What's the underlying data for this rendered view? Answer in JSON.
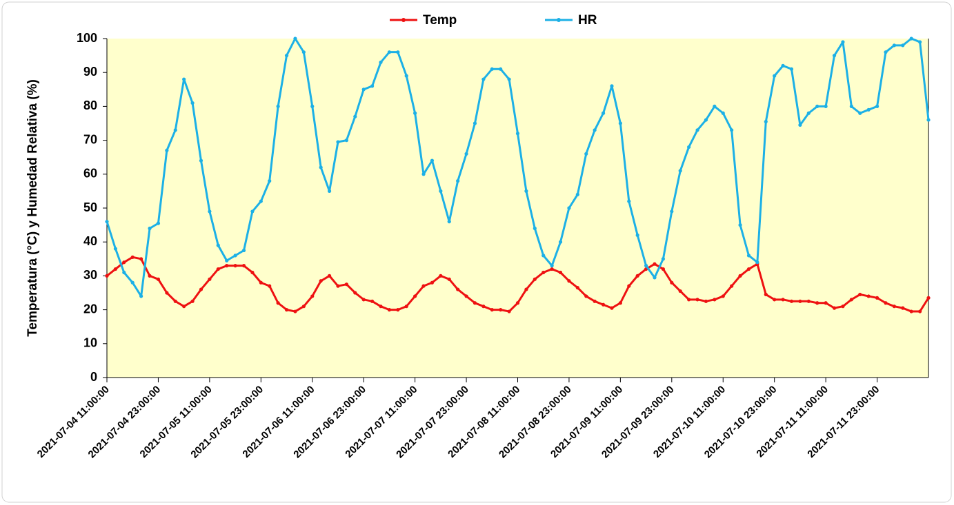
{
  "chart_data": {
    "type": "line",
    "y_label": "Temperatura (°C) y Humedad Relativa (%)",
    "x": [
      "2021-07-04 11:00:00",
      "2021-07-04 13:00:00",
      "2021-07-04 15:00:00",
      "2021-07-04 17:00:00",
      "2021-07-04 19:00:00",
      "2021-07-04 21:00:00",
      "2021-07-04 23:00:00",
      "2021-07-05 01:00:00",
      "2021-07-05 03:00:00",
      "2021-07-05 05:00:00",
      "2021-07-05 07:00:00",
      "2021-07-05 09:00:00",
      "2021-07-05 11:00:00",
      "2021-07-05 13:00:00",
      "2021-07-05 15:00:00",
      "2021-07-05 17:00:00",
      "2021-07-05 19:00:00",
      "2021-07-05 21:00:00",
      "2021-07-05 23:00:00",
      "2021-07-06 01:00:00",
      "2021-07-06 03:00:00",
      "2021-07-06 05:00:00",
      "2021-07-06 07:00:00",
      "2021-07-06 09:00:00",
      "2021-07-06 11:00:00",
      "2021-07-06 13:00:00",
      "2021-07-06 15:00:00",
      "2021-07-06 17:00:00",
      "2021-07-06 19:00:00",
      "2021-07-06 21:00:00",
      "2021-07-06 23:00:00",
      "2021-07-07 01:00:00",
      "2021-07-07 03:00:00",
      "2021-07-07 05:00:00",
      "2021-07-07 07:00:00",
      "2021-07-07 09:00:00",
      "2021-07-07 11:00:00",
      "2021-07-07 13:00:00",
      "2021-07-07 15:00:00",
      "2021-07-07 17:00:00",
      "2021-07-07 19:00:00",
      "2021-07-07 21:00:00",
      "2021-07-07 23:00:00",
      "2021-07-08 01:00:00",
      "2021-07-08 03:00:00",
      "2021-07-08 05:00:00",
      "2021-07-08 07:00:00",
      "2021-07-08 09:00:00",
      "2021-07-08 11:00:00",
      "2021-07-08 13:00:00",
      "2021-07-08 15:00:00",
      "2021-07-08 17:00:00",
      "2021-07-08 19:00:00",
      "2021-07-08 21:00:00",
      "2021-07-08 23:00:00",
      "2021-07-09 01:00:00",
      "2021-07-09 03:00:00",
      "2021-07-09 05:00:00",
      "2021-07-09 07:00:00",
      "2021-07-09 09:00:00",
      "2021-07-09 11:00:00",
      "2021-07-09 13:00:00",
      "2021-07-09 15:00:00",
      "2021-07-09 17:00:00",
      "2021-07-09 19:00:00",
      "2021-07-09 21:00:00",
      "2021-07-09 23:00:00",
      "2021-07-10 01:00:00",
      "2021-07-10 03:00:00",
      "2021-07-10 05:00:00",
      "2021-07-10 07:00:00",
      "2021-07-10 09:00:00",
      "2021-07-10 11:00:00",
      "2021-07-10 13:00:00",
      "2021-07-10 15:00:00",
      "2021-07-10 17:00:00",
      "2021-07-10 19:00:00",
      "2021-07-10 21:00:00",
      "2021-07-10 23:00:00",
      "2021-07-11 01:00:00",
      "2021-07-11 03:00:00",
      "2021-07-11 05:00:00",
      "2021-07-11 07:00:00",
      "2021-07-11 09:00:00",
      "2021-07-11 11:00:00",
      "2021-07-11 13:00:00",
      "2021-07-11 15:00:00",
      "2021-07-11 17:00:00",
      "2021-07-11 19:00:00",
      "2021-07-11 21:00:00",
      "2021-07-11 23:00:00",
      "2021-07-12 01:00:00",
      "2021-07-12 03:00:00",
      "2021-07-12 05:00:00",
      "2021-07-12 07:00:00",
      "2021-07-12 09:00:00",
      "2021-07-12 11:00:00"
    ],
    "series": [
      {
        "name": "Temp",
        "color": "#ee1111",
        "values": [
          30,
          32,
          34,
          35.5,
          35,
          30,
          29,
          25,
          22.5,
          21,
          22.5,
          26,
          29,
          32,
          33,
          33,
          33,
          31,
          28,
          27,
          22,
          20,
          19.5,
          21,
          24,
          28.5,
          30,
          27,
          27.5,
          25,
          23,
          22.5,
          21,
          20,
          20,
          21,
          24,
          27,
          28,
          30,
          29,
          26,
          24,
          22,
          21,
          20,
          20,
          19.5,
          22,
          26,
          29,
          31,
          32,
          31,
          28.5,
          26.5,
          24,
          22.5,
          21.5,
          20.5,
          22,
          27,
          30,
          32,
          33.5,
          32,
          28,
          25.5,
          23,
          23,
          22.5,
          23,
          24,
          27,
          30,
          32,
          33.5,
          24.5,
          23,
          23,
          22.5,
          22.5,
          22.5,
          22,
          22,
          20.5,
          21,
          23,
          24.5,
          24,
          23.5,
          22,
          21,
          20.5,
          19.5,
          19.5,
          23.5
        ]
      },
      {
        "name": "HR",
        "color": "#1cb0e6",
        "values": [
          46,
          38,
          31,
          28,
          24,
          44,
          45.5,
          67,
          73,
          88,
          81,
          64,
          49,
          39,
          34.5,
          36,
          37.5,
          49,
          52,
          58,
          80,
          95,
          100,
          96,
          80,
          62,
          55,
          69.5,
          70,
          77,
          85,
          86,
          93,
          96,
          96,
          89,
          78,
          60,
          64,
          55,
          46,
          58,
          66,
          75,
          88,
          91,
          91,
          88,
          72,
          55,
          44,
          36,
          33,
          40,
          50,
          54,
          66,
          73,
          78,
          86,
          75,
          52,
          42,
          33,
          29.5,
          35,
          49,
          61,
          68,
          73,
          76,
          80,
          78,
          73,
          45,
          36,
          34,
          75.5,
          89,
          92,
          91,
          74.5,
          78,
          80,
          80,
          95,
          99,
          80,
          78,
          79,
          80,
          96,
          98,
          98,
          100,
          99,
          76
        ]
      }
    ],
    "xlim": [
      "2021-07-04 11:00:00",
      "2021-07-12 11:00:00"
    ],
    "xticks": [
      "2021-07-04 11:00:00",
      "2021-07-04 23:00:00",
      "2021-07-05 11:00:00",
      "2021-07-05 23:00:00",
      "2021-07-06 11:00:00",
      "2021-07-06 23:00:00",
      "2021-07-07 11:00:00",
      "2021-07-07 23:00:00",
      "2021-07-08 11:00:00",
      "2021-07-08 23:00:00",
      "2021-07-09 11:00:00",
      "2021-07-09 23:00:00",
      "2021-07-10 11:00:00",
      "2021-07-10 23:00:00",
      "2021-07-11 11:00:00",
      "2021-07-11 23:00:00"
    ],
    "ylim": [
      0,
      100
    ],
    "yticks": [
      0,
      10,
      20,
      30,
      40,
      50,
      60,
      70,
      80,
      90,
      100
    ],
    "plot_background": "#ffffcc"
  }
}
